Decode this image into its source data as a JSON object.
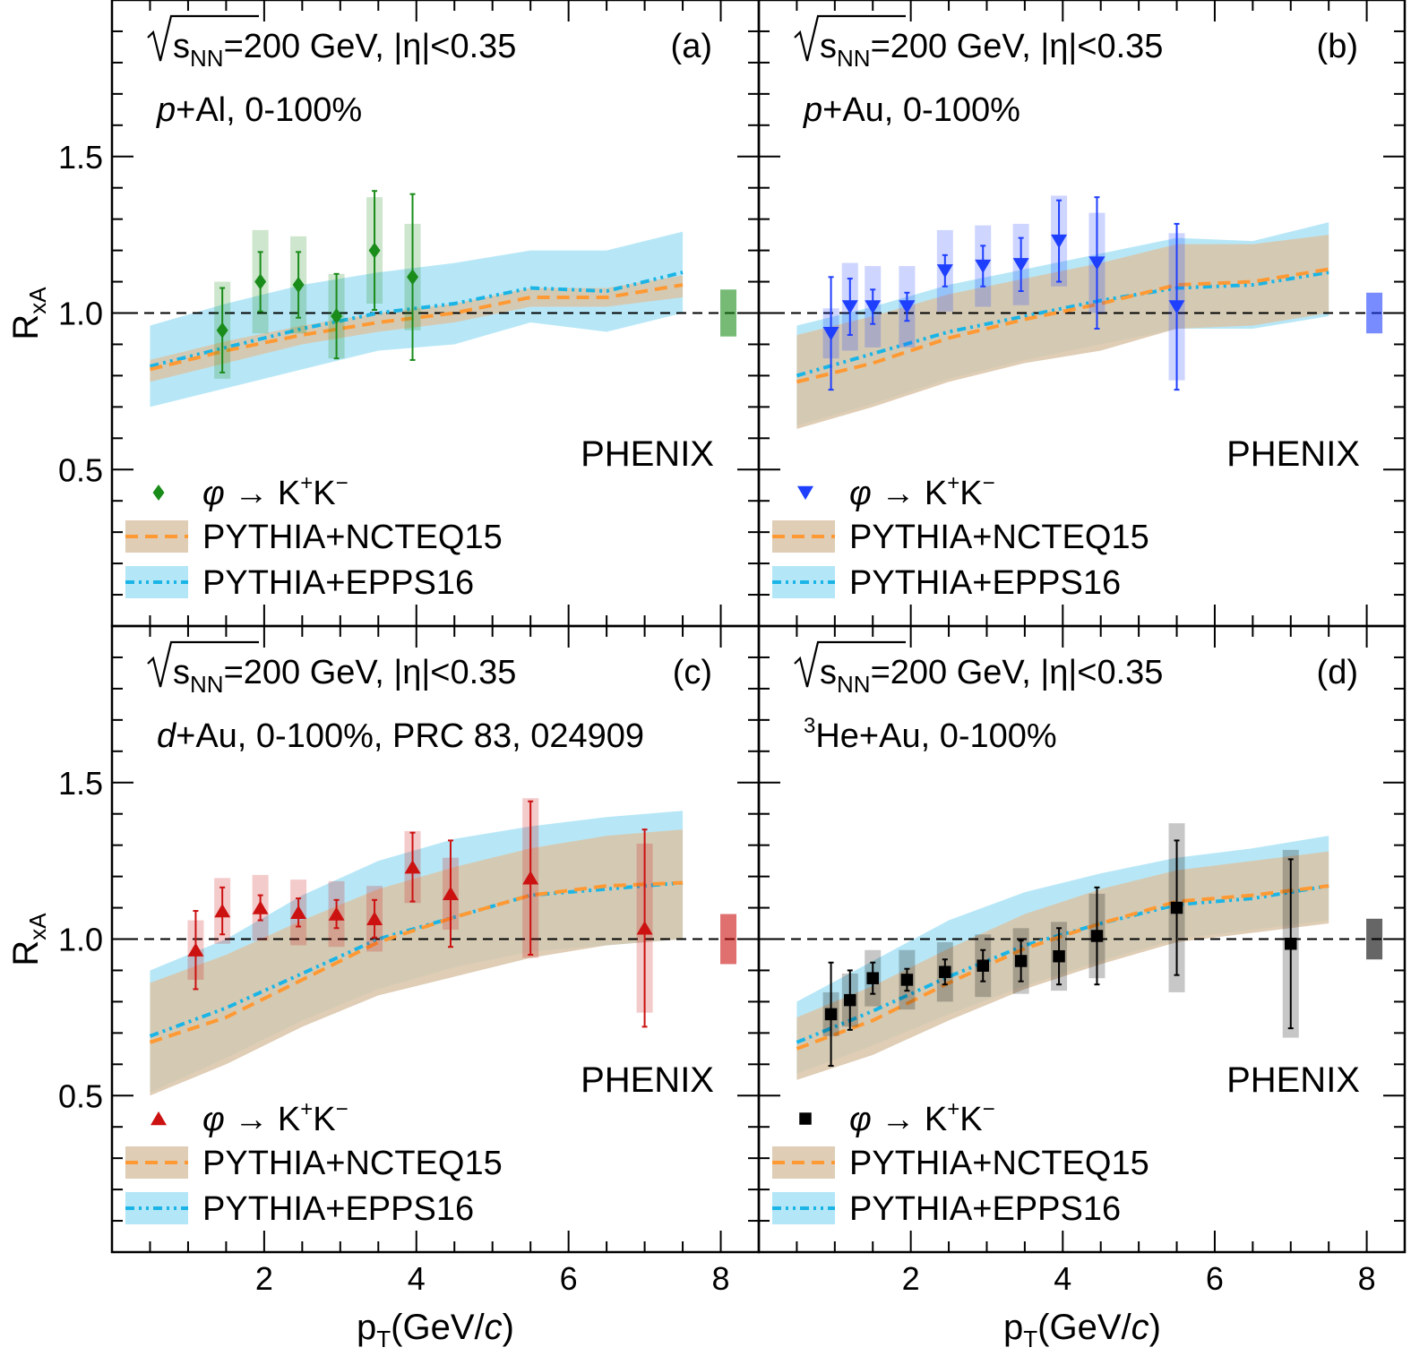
{
  "figure": {
    "experiment": "PHENIX",
    "ylabel": "R",
    "ylabel_sub": "xA",
    "xlabel": "p",
    "xlabel_sub": "T",
    "xlabel_unit_pre": "(GeV/",
    "xlabel_unit_c": "c",
    "xlabel_unit_post": ")",
    "energy_label": "=200 GeV, |η|<0.35",
    "energy_s": "s",
    "energy_sub": "NN",
    "legend_decay_sym": "φ",
    "legend_decay_arrow": " → K",
    "legend_decay_plus": "+",
    "legend_decay_k": "K",
    "legend_decay_minus": "−",
    "legend_model1": "PYTHIA+NCTEQ15",
    "legend_model2": "PYTHIA+EPPS16",
    "colors": {
      "ncteq_line": "#ff9933",
      "ncteq_band": "#d9c4a8",
      "epps_line": "#1ab5e6",
      "epps_band": "#b3e6f7"
    }
  },
  "chart_data": [
    {
      "panel_label": "(a)",
      "system_italic": "p",
      "system_rest": "+Al, 0-100%",
      "marker": "diamond",
      "color": "#1a8c1a",
      "type": "scatter",
      "xlim": [
        0,
        8.5
      ],
      "ylim": [
        0,
        2.0
      ],
      "xticks": [
        2,
        4,
        6,
        8
      ],
      "yticks": [
        0.5,
        1.0,
        1.5
      ],
      "global_sys": 0.075,
      "points": [
        {
          "x": 1.45,
          "y": 0.945,
          "stat": 0.135,
          "sys": 0.155
        },
        {
          "x": 1.95,
          "y": 1.1,
          "stat": 0.095,
          "sys": 0.165
        },
        {
          "x": 2.45,
          "y": 1.09,
          "stat": 0.105,
          "sys": 0.155
        },
        {
          "x": 2.95,
          "y": 0.99,
          "stat": 0.135,
          "sys": 0.135
        },
        {
          "x": 3.45,
          "y": 1.2,
          "stat": 0.19,
          "sys": 0.17
        },
        {
          "x": 3.95,
          "y": 1.115,
          "stat": 0.265,
          "sys": 0.17
        }
      ],
      "ncteq": {
        "x": [
          0.5,
          1.5,
          2.5,
          3.5,
          4.5,
          5.5,
          6.5,
          7.5
        ],
        "y": [
          0.82,
          0.88,
          0.93,
          0.97,
          1.0,
          1.05,
          1.05,
          1.09
        ],
        "lo": [
          0.78,
          0.84,
          0.9,
          0.94,
          0.97,
          1.02,
          1.02,
          1.05
        ],
        "hi": [
          0.85,
          0.91,
          0.96,
          1.0,
          1.03,
          1.08,
          1.08,
          1.12
        ]
      },
      "epps": {
        "x": [
          0.5,
          1.5,
          2.5,
          3.5,
          4.5,
          5.5,
          6.5,
          7.5
        ],
        "y": [
          0.83,
          0.89,
          0.95,
          1.0,
          1.03,
          1.08,
          1.07,
          1.13
        ],
        "lo": [
          0.7,
          0.76,
          0.82,
          0.88,
          0.9,
          0.97,
          0.94,
          1.0
        ],
        "hi": [
          0.96,
          1.03,
          1.09,
          1.13,
          1.16,
          1.2,
          1.2,
          1.26
        ]
      }
    },
    {
      "panel_label": "(b)",
      "system_italic": "p",
      "system_rest": "+Au, 0-100%",
      "marker": "triangle-down",
      "color": "#1f3fff",
      "type": "scatter",
      "xlim": [
        0,
        8.5
      ],
      "ylim": [
        0,
        2.0
      ],
      "xticks": [
        2,
        4,
        6,
        8
      ],
      "yticks": [
        0.5,
        1.0,
        1.5
      ],
      "global_sys": 0.065,
      "points": [
        {
          "x": 0.95,
          "y": 0.935,
          "stat": 0.18,
          "sys": 0.08
        },
        {
          "x": 1.2,
          "y": 1.02,
          "stat": 0.09,
          "sys": 0.14
        },
        {
          "x": 1.5,
          "y": 1.02,
          "stat": 0.055,
          "sys": 0.13
        },
        {
          "x": 1.95,
          "y": 1.02,
          "stat": 0.045,
          "sys": 0.13
        },
        {
          "x": 2.45,
          "y": 1.135,
          "stat": 0.05,
          "sys": 0.13
        },
        {
          "x": 2.95,
          "y": 1.15,
          "stat": 0.065,
          "sys": 0.13
        },
        {
          "x": 3.45,
          "y": 1.155,
          "stat": 0.085,
          "sys": 0.13
        },
        {
          "x": 3.95,
          "y": 1.23,
          "stat": 0.13,
          "sys": 0.145
        },
        {
          "x": 4.45,
          "y": 1.16,
          "stat": 0.21,
          "sys": 0.16
        },
        {
          "x": 5.5,
          "y": 1.02,
          "stat": 0.265,
          "sys": 0.235
        }
      ],
      "ncteq": {
        "x": [
          0.5,
          1.5,
          2.5,
          3.5,
          4.5,
          5.5,
          6.5,
          7.5
        ],
        "y": [
          0.78,
          0.84,
          0.92,
          0.98,
          1.03,
          1.09,
          1.1,
          1.14
        ],
        "lo": [
          0.63,
          0.7,
          0.78,
          0.84,
          0.88,
          0.95,
          0.96,
          1.0
        ],
        "hi": [
          0.93,
          0.99,
          1.06,
          1.11,
          1.16,
          1.22,
          1.22,
          1.25
        ]
      },
      "epps": {
        "x": [
          0.5,
          1.5,
          2.5,
          3.5,
          4.5,
          5.5,
          6.5,
          7.5
        ],
        "y": [
          0.8,
          0.87,
          0.94,
          0.99,
          1.04,
          1.08,
          1.09,
          1.13
        ],
        "lo": [
          0.64,
          0.71,
          0.79,
          0.85,
          0.9,
          0.95,
          0.95,
          0.99
        ],
        "hi": [
          0.96,
          1.02,
          1.09,
          1.14,
          1.19,
          1.24,
          1.23,
          1.29
        ]
      }
    },
    {
      "panel_label": "(c)",
      "system_italic": "d",
      "system_rest": "+Au, 0-100%, PRC 83, 024909",
      "marker": "triangle-up",
      "color": "#cc1111",
      "type": "scatter",
      "xlim": [
        0,
        8.5
      ],
      "ylim": [
        0,
        2.0
      ],
      "xticks": [
        2,
        4,
        6,
        8
      ],
      "yticks": [
        0.5,
        1.0,
        1.5
      ],
      "global_sys": 0.08,
      "points": [
        {
          "x": 1.1,
          "y": 0.965,
          "stat": 0.125,
          "sys": 0.095
        },
        {
          "x": 1.45,
          "y": 1.09,
          "stat": 0.075,
          "sys": 0.105
        },
        {
          "x": 1.95,
          "y": 1.1,
          "stat": 0.04,
          "sys": 0.105
        },
        {
          "x": 2.45,
          "y": 1.085,
          "stat": 0.045,
          "sys": 0.105
        },
        {
          "x": 2.95,
          "y": 1.08,
          "stat": 0.045,
          "sys": 0.105
        },
        {
          "x": 3.45,
          "y": 1.065,
          "stat": 0.06,
          "sys": 0.105
        },
        {
          "x": 3.95,
          "y": 1.23,
          "stat": 0.11,
          "sys": 0.115
        },
        {
          "x": 4.45,
          "y": 1.145,
          "stat": 0.17,
          "sys": 0.115
        },
        {
          "x": 5.5,
          "y": 1.195,
          "stat": 0.245,
          "sys": 0.255
        },
        {
          "x": 7.0,
          "y": 1.035,
          "stat": 0.315,
          "sys": 0.27
        }
      ],
      "ncteq": {
        "x": [
          0.5,
          1.5,
          2.5,
          3.5,
          4.5,
          5.5,
          6.5,
          7.5
        ],
        "y": [
          0.67,
          0.75,
          0.87,
          0.99,
          1.07,
          1.14,
          1.17,
          1.18
        ],
        "lo": [
          0.5,
          0.6,
          0.72,
          0.82,
          0.88,
          0.94,
          0.98,
          1.0
        ],
        "hi": [
          0.86,
          0.95,
          1.06,
          1.16,
          1.23,
          1.29,
          1.33,
          1.35
        ]
      },
      "epps": {
        "x": [
          0.5,
          1.5,
          2.5,
          3.5,
          4.5,
          5.5,
          6.5,
          7.5
        ],
        "y": [
          0.69,
          0.78,
          0.89,
          1.0,
          1.07,
          1.14,
          1.16,
          1.18
        ],
        "lo": [
          0.51,
          0.62,
          0.74,
          0.84,
          0.91,
          0.96,
          0.98,
          1.0
        ],
        "hi": [
          0.9,
          1.0,
          1.14,
          1.25,
          1.32,
          1.36,
          1.39,
          1.41
        ]
      }
    },
    {
      "panel_label": "(d)",
      "system_sup": "3",
      "system_rest": "He+Au, 0-100%",
      "marker": "square",
      "color": "#000000",
      "type": "scatter",
      "xlim": [
        0,
        8.5
      ],
      "ylim": [
        0,
        2.0
      ],
      "xticks": [
        2,
        4,
        6,
        8
      ],
      "yticks": [
        0.5,
        1.0,
        1.5
      ],
      "global_sys": 0.065,
      "points": [
        {
          "x": 0.95,
          "y": 0.76,
          "stat": 0.165,
          "sys": 0.07
        },
        {
          "x": 1.2,
          "y": 0.805,
          "stat": 0.095,
          "sys": 0.085
        },
        {
          "x": 1.5,
          "y": 0.875,
          "stat": 0.05,
          "sys": 0.09
        },
        {
          "x": 1.95,
          "y": 0.87,
          "stat": 0.035,
          "sys": 0.095
        },
        {
          "x": 2.45,
          "y": 0.895,
          "stat": 0.04,
          "sys": 0.095
        },
        {
          "x": 2.95,
          "y": 0.915,
          "stat": 0.05,
          "sys": 0.1
        },
        {
          "x": 3.45,
          "y": 0.93,
          "stat": 0.065,
          "sys": 0.105
        },
        {
          "x": 3.95,
          "y": 0.945,
          "stat": 0.09,
          "sys": 0.11
        },
        {
          "x": 4.45,
          "y": 1.01,
          "stat": 0.155,
          "sys": 0.135
        },
        {
          "x": 5.5,
          "y": 1.1,
          "stat": 0.215,
          "sys": 0.27
        },
        {
          "x": 7.0,
          "y": 0.985,
          "stat": 0.27,
          "sys": 0.3
        }
      ],
      "ncteq": {
        "x": [
          0.5,
          1.5,
          2.5,
          3.5,
          4.5,
          5.5,
          6.5,
          7.5
        ],
        "y": [
          0.65,
          0.74,
          0.86,
          0.97,
          1.05,
          1.12,
          1.14,
          1.17
        ],
        "lo": [
          0.55,
          0.63,
          0.74,
          0.84,
          0.92,
          0.99,
          1.02,
          1.05
        ],
        "hi": [
          0.75,
          0.85,
          0.97,
          1.08,
          1.16,
          1.22,
          1.25,
          1.28
        ]
      },
      "epps": {
        "x": [
          0.5,
          1.5,
          2.5,
          3.5,
          4.5,
          5.5,
          6.5,
          7.5
        ],
        "y": [
          0.67,
          0.77,
          0.88,
          0.98,
          1.05,
          1.11,
          1.13,
          1.17
        ],
        "lo": [
          0.57,
          0.66,
          0.76,
          0.85,
          0.93,
          1.0,
          1.03,
          1.06
        ],
        "hi": [
          0.8,
          0.93,
          1.06,
          1.15,
          1.21,
          1.26,
          1.29,
          1.33
        ]
      }
    }
  ]
}
